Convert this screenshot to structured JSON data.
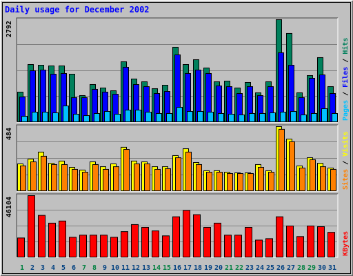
{
  "chart_data": {
    "type": "bar",
    "title": "Daily usage for December 2002",
    "legend_separator": " / ",
    "categories": [
      "1",
      "2",
      "3",
      "4",
      "5",
      "6",
      "7",
      "8",
      "9",
      "10",
      "11",
      "12",
      "13",
      "14",
      "15",
      "16",
      "17",
      "18",
      "19",
      "20",
      "21",
      "22",
      "23",
      "24",
      "25",
      "26",
      "27",
      "28",
      "29",
      "30",
      "31"
    ],
    "category_colors": [
      "#008040",
      "#004080",
      "#004080",
      "#004080",
      "#004080",
      "#004080",
      "#008040",
      "#008040",
      "#004080",
      "#004080",
      "#004080",
      "#004080",
      "#004080",
      "#008040",
      "#008040",
      "#004080",
      "#004080",
      "#004080",
      "#004080",
      "#004080",
      "#008040",
      "#008040",
      "#004080",
      "#004080",
      "#004080",
      "#004080",
      "#004080",
      "#008040",
      "#008040",
      "#004080",
      "#004080"
    ],
    "grid": true,
    "panels": [
      {
        "ylim": [
          0,
          2792
        ],
        "yticks": [
          2792
        ],
        "series": [
          {
            "name": "Hits",
            "color": "#00805c",
            "values": [
              825,
              1574,
              1555,
              1537,
              1537,
              1312,
              731,
              1031,
              937,
              862,
              1649,
              1181,
              1106,
              918,
              1012,
              2043,
              1574,
              1705,
              1480,
              1106,
              1124,
              937,
              1087,
              806,
              1106,
              2792,
              2418,
              806,
              1274,
              1762,
              974
            ]
          },
          {
            "name": "Files",
            "color": "#0000ff",
            "values": [
              693,
              1406,
              1424,
              1312,
              1331,
              675,
              675,
              900,
              825,
              768,
              1499,
              1031,
              974,
              787,
              843,
              1837,
              1331,
              1424,
              1331,
              993,
              974,
              787,
              974,
              731,
              974,
              1893,
              1555,
              675,
              1199,
              1293,
              787
            ]
          },
          {
            "name": "Pages",
            "color": "#00c0ff",
            "values": [
              169,
              281,
              281,
              262,
              450,
              225,
              187,
              244,
              300,
              225,
              337,
              337,
              281,
              244,
              244,
              412,
              300,
              300,
              281,
              244,
              225,
              206,
              244,
              244,
              262,
              281,
              300,
              206,
              244,
              375,
              244
            ]
          }
        ]
      },
      {
        "ylim": [
          0,
          484
        ],
        "yticks": [
          484
        ],
        "series": [
          {
            "name": "Visits",
            "color": "#ffff00",
            "values": [
              206,
              242,
              294,
              211,
              227,
              180,
              160,
              221,
              185,
              206,
              330,
              227,
              221,
              185,
              185,
              268,
              319,
              216,
              155,
              155,
              144,
              139,
              139,
              201,
              155,
              484,
              391,
              191,
              252,
              211,
              175
            ]
          },
          {
            "name": "Sites",
            "color": "#ff8000",
            "values": [
              191,
              221,
              263,
              201,
              201,
              165,
              144,
              201,
              165,
              185,
              314,
              206,
              206,
              165,
              170,
              252,
              294,
              201,
              144,
              144,
              134,
              134,
              134,
              180,
              144,
              464,
              371,
              175,
              237,
              185,
              165
            ]
          }
        ]
      },
      {
        "ylim": [
          0,
          46104
        ],
        "yticks": [
          46104
        ],
        "series": [
          {
            "name": "KBytes",
            "color": "#ff0000",
            "values": [
              14672,
              46104,
              31440,
              25676,
              27248,
              15196,
              16768,
              16768,
              16768,
              15196,
              19388,
              24628,
              22532,
              19912,
              16244,
              30392,
              35108,
              31964,
              22532,
              25676,
              16768,
              16768,
              22532,
              13100,
              14148,
              30392,
              23580,
              15720,
              23580,
              23056,
              18864
            ]
          }
        ]
      }
    ]
  }
}
